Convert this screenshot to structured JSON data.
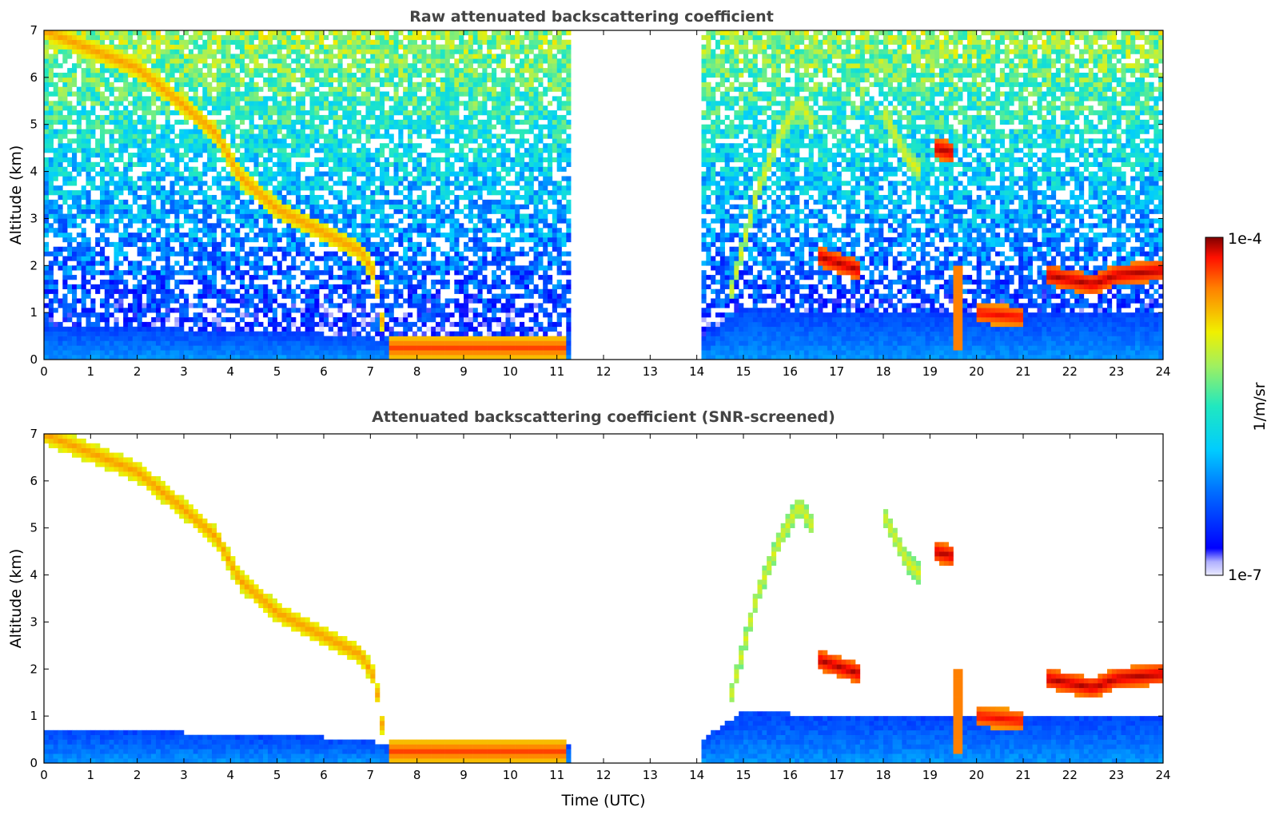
{
  "chart_data": [
    {
      "type": "heatmap",
      "title": "Raw attenuated backscattering coefficient",
      "xlabel": "",
      "ylabel": "Altitude (km)",
      "xlim": [
        0,
        24
      ],
      "ylim": [
        0,
        7
      ],
      "x_ticks": [
        "0",
        "1",
        "2",
        "3",
        "4",
        "5",
        "6",
        "7",
        "8",
        "9",
        "10",
        "11",
        "12",
        "13",
        "14",
        "15",
        "16",
        "17",
        "18",
        "19",
        "20",
        "21",
        "22",
        "23",
        "24"
      ],
      "y_ticks": [
        "0",
        "1",
        "2",
        "3",
        "4",
        "5",
        "6",
        "7"
      ],
      "grid": false,
      "data_gaps": [
        [
          11.3,
          14.1
        ]
      ],
      "boundary_layer": [
        [
          0,
          0.7
        ],
        [
          2,
          0.7
        ],
        [
          4,
          0.6
        ],
        [
          6,
          0.55
        ],
        [
          7,
          0.5
        ],
        [
          7.3,
          0.4
        ],
        [
          11.2,
          0.4
        ],
        [
          14.1,
          0.5
        ],
        [
          15,
          1.1
        ],
        [
          16,
          1.05
        ],
        [
          18,
          1.0
        ],
        [
          20,
          0.95
        ],
        [
          22,
          1.0
        ],
        [
          24,
          1.0
        ]
      ],
      "cloud_features": [
        {
          "points": [
            [
              0,
              7
            ],
            [
              1,
              6.6
            ],
            [
              2,
              6.2
            ],
            [
              3,
              5.4
            ],
            [
              3.7,
              4.8
            ],
            [
              4.2,
              3.9
            ],
            [
              5,
              3.2
            ],
            [
              6,
              2.7
            ],
            [
              6.8,
              2.3
            ],
            [
              7.1,
              1.8
            ],
            [
              7.3,
              0.5
            ]
          ],
          "level": 0.82
        },
        {
          "points": [
            [
              7.4,
              0.25
            ],
            [
              11.2,
              0.25
            ]
          ],
          "level": 0.9
        },
        {
          "points": [
            [
              14.7,
              1.3
            ],
            [
              15.3,
              3.6
            ],
            [
              15.8,
              4.8
            ],
            [
              16.2,
              5.5
            ],
            [
              16.5,
              5.0
            ]
          ],
          "level": 0.7
        },
        {
          "points": [
            [
              18,
              5.3
            ],
            [
              18.5,
              4.3
            ],
            [
              18.8,
              4.0
            ]
          ],
          "level": 0.7
        },
        {
          "points": [
            [
              19.1,
              4.5
            ],
            [
              19.5,
              4.4
            ]
          ],
          "level": 0.98
        },
        {
          "points": [
            [
              16.6,
              2.2
            ],
            [
              17.5,
              1.9
            ]
          ],
          "level": 0.98
        },
        {
          "points": [
            [
              21.5,
              1.8
            ],
            [
              22.5,
              1.6
            ],
            [
              23,
              1.8
            ],
            [
              24,
              1.9
            ]
          ],
          "level": 0.98
        },
        {
          "points": [
            [
              20,
              1.0
            ],
            [
              21,
              0.9
            ]
          ],
          "level": 0.95
        },
        {
          "points": [
            [
              19.6,
              2.0
            ],
            [
              19.6,
              0.2
            ]
          ],
          "level": 0.85
        }
      ]
    },
    {
      "type": "heatmap",
      "title": "Attenuated backscattering coefficient (SNR-screened)",
      "xlabel": "Time (UTC)",
      "ylabel": "Altitude (km)",
      "xlim": [
        0,
        24
      ],
      "ylim": [
        0,
        7
      ],
      "x_ticks": [
        "0",
        "1",
        "2",
        "3",
        "4",
        "5",
        "6",
        "7",
        "8",
        "9",
        "10",
        "11",
        "12",
        "13",
        "14",
        "15",
        "16",
        "17",
        "18",
        "19",
        "20",
        "21",
        "22",
        "23",
        "24"
      ],
      "y_ticks": [
        "0",
        "1",
        "2",
        "3",
        "4",
        "5",
        "6",
        "7"
      ],
      "grid": false,
      "data_gaps": [
        [
          11.3,
          14.1
        ]
      ]
    }
  ],
  "colorbar": {
    "scale": "log",
    "colormap": "jet",
    "min_label": "1e-7",
    "max_label": "1e-4",
    "label": "1/m/sr",
    "range": [
      1e-07,
      0.0001
    ]
  }
}
